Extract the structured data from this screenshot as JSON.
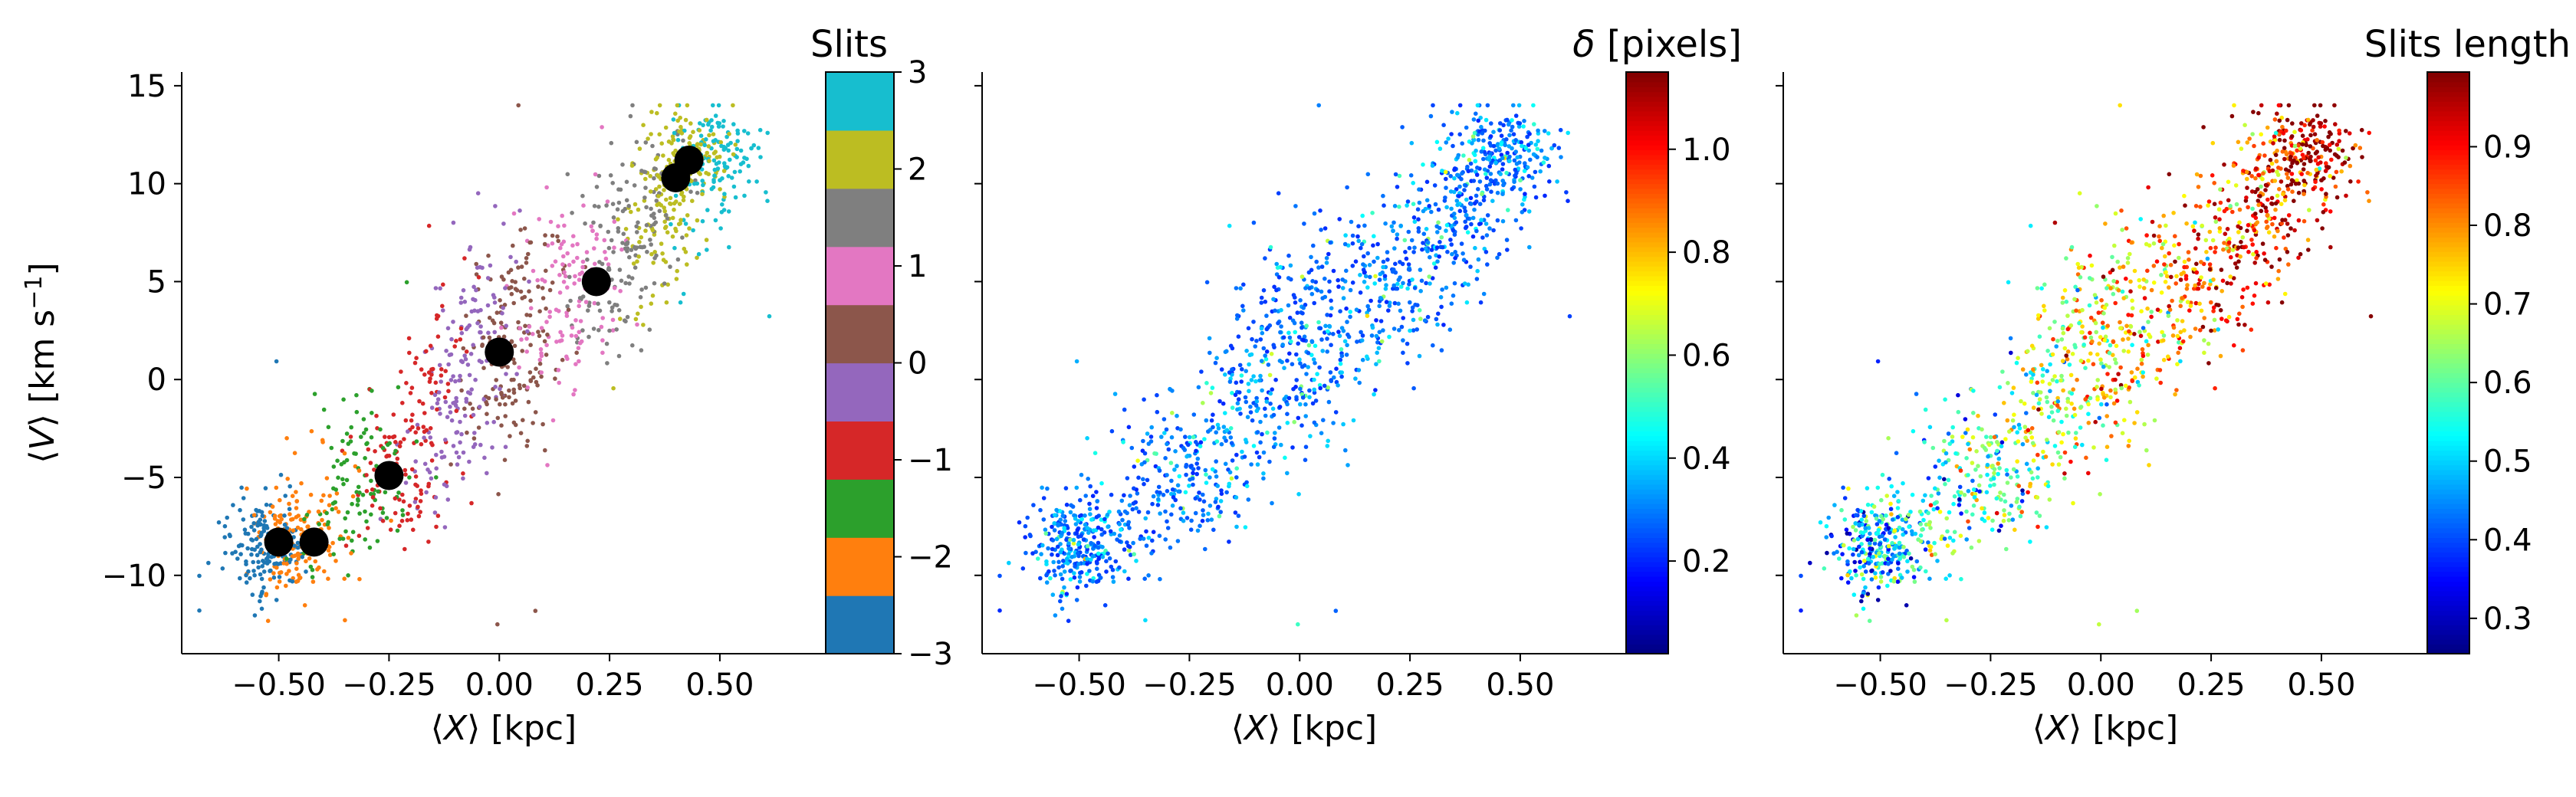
{
  "chart_data": [
    {
      "type": "scatter",
      "xlabel_parts": [
        "⟨",
        "X",
        "⟩ [kpc]"
      ],
      "ylabel_parts": [
        "⟨",
        "V",
        "⟩ [km s",
        "−1",
        "]"
      ],
      "xlim": [
        -0.72,
        0.74
      ],
      "ylim": [
        -14,
        15.7
      ],
      "xticks": [
        -0.5,
        -0.25,
        0.0,
        0.25,
        0.5
      ],
      "xtick_labels": [
        "−0.50",
        "−0.25",
        "0.00",
        "0.25",
        "0.50"
      ],
      "yticks": [
        -10,
        -5,
        0,
        5,
        10,
        15
      ],
      "ytick_labels": [
        "−10",
        "−5",
        "0",
        "5",
        "10",
        "15"
      ],
      "color_by": "slit",
      "colorbar": {
        "title": "Slits",
        "type": "discrete",
        "range": [
          -3,
          3
        ],
        "ticks": [
          -3,
          -2,
          -1,
          0,
          1,
          2,
          3
        ],
        "tick_labels": [
          "−3",
          "−2",
          "−1",
          "0",
          "1",
          "2",
          "3"
        ],
        "colors": [
          "#1f77b4",
          "#ff7f0e",
          "#2ca02c",
          "#d62728",
          "#9467bd",
          "#8c564b",
          "#e377c2",
          "#7f7f7f",
          "#bcbd22",
          "#17becf"
        ]
      },
      "slit_centers": [
        {
          "x": -0.5,
          "y": -8.3
        },
        {
          "x": -0.42,
          "y": -8.3
        },
        {
          "x": -0.25,
          "y": -4.9
        },
        {
          "x": 0.0,
          "y": 1.4
        },
        {
          "x": 0.22,
          "y": 5.0
        },
        {
          "x": 0.4,
          "y": 10.3
        },
        {
          "x": 0.43,
          "y": 11.2
        }
      ],
      "marker_color": "#000000"
    },
    {
      "type": "scatter",
      "xlabel_parts": [
        "⟨",
        "X",
        "⟩ [kpc]"
      ],
      "xlim": [
        -0.72,
        0.74
      ],
      "ylim": [
        -14,
        15.7
      ],
      "xticks": [
        -0.5,
        -0.25,
        0.0,
        0.25,
        0.5
      ],
      "xtick_labels": [
        "−0.50",
        "−0.25",
        "0.00",
        "0.25",
        "0.50"
      ],
      "color_by": "delta",
      "colorbar": {
        "title_parts": [
          "δ",
          " [pixels]"
        ],
        "type": "continuous",
        "colormap": "jet",
        "range": [
          0.02,
          1.15
        ],
        "ticks": [
          0.2,
          0.4,
          0.6,
          0.8,
          1.0
        ],
        "tick_labels": [
          "0.2",
          "0.4",
          "0.6",
          "0.8",
          "1.0"
        ]
      }
    },
    {
      "type": "scatter",
      "xlabel_parts": [
        "⟨",
        "X",
        "⟩ [kpc]"
      ],
      "xlim": [
        -0.72,
        0.74
      ],
      "ylim": [
        -14,
        15.7
      ],
      "xticks": [
        -0.5,
        -0.25,
        0.0,
        0.25,
        0.5
      ],
      "xtick_labels": [
        "−0.50",
        "−0.25",
        "0.00",
        "0.25",
        "0.50"
      ],
      "color_by": "slit_length",
      "colorbar": {
        "title": "Slits length",
        "type": "continuous",
        "colormap": "jet",
        "range": [
          0.255,
          0.995
        ],
        "ticks": [
          0.3,
          0.4,
          0.5,
          0.6,
          0.7,
          0.8,
          0.9
        ],
        "tick_labels": [
          "0.3",
          "0.4",
          "0.5",
          "0.6",
          "0.7",
          "0.8",
          "0.9"
        ]
      }
    }
  ]
}
